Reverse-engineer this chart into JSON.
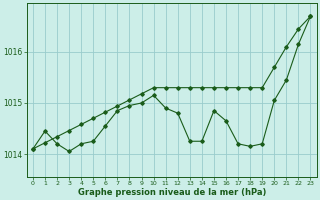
{
  "x": [
    0,
    1,
    2,
    3,
    4,
    5,
    6,
    7,
    8,
    9,
    10,
    11,
    12,
    13,
    14,
    15,
    16,
    17,
    18,
    19,
    20,
    21,
    22,
    23
  ],
  "y_main": [
    1014.1,
    1014.45,
    1014.2,
    1014.05,
    1014.2,
    1014.25,
    1014.55,
    1014.85,
    1014.95,
    1015.0,
    1015.15,
    1014.9,
    1014.8,
    1014.25,
    1014.25,
    1014.85,
    1014.65,
    1014.2,
    1014.15,
    1014.2,
    1015.05,
    1015.45,
    1016.15,
    1016.7
  ],
  "y_trend": [
    1014.1,
    1014.22,
    1014.34,
    1014.46,
    1014.58,
    1014.7,
    1014.82,
    1014.94,
    1015.06,
    1015.18,
    1015.3,
    1015.3,
    1015.3,
    1015.3,
    1015.3,
    1015.3,
    1015.3,
    1015.3,
    1015.3,
    1015.3,
    1015.7,
    1016.1,
    1016.45,
    1016.7
  ],
  "line_color": "#1a5c1a",
  "bg_color": "#cceee8",
  "grid_color": "#99cccc",
  "xlabel": "Graphe pression niveau de la mer (hPa)",
  "yticks": [
    1014,
    1015,
    1016
  ],
  "ylim": [
    1013.55,
    1016.95
  ],
  "xlim": [
    -0.5,
    23.5
  ],
  "marker": "D",
  "markersize": 1.8,
  "linewidth": 0.8,
  "figsize": [
    3.2,
    2.0
  ],
  "dpi": 100
}
